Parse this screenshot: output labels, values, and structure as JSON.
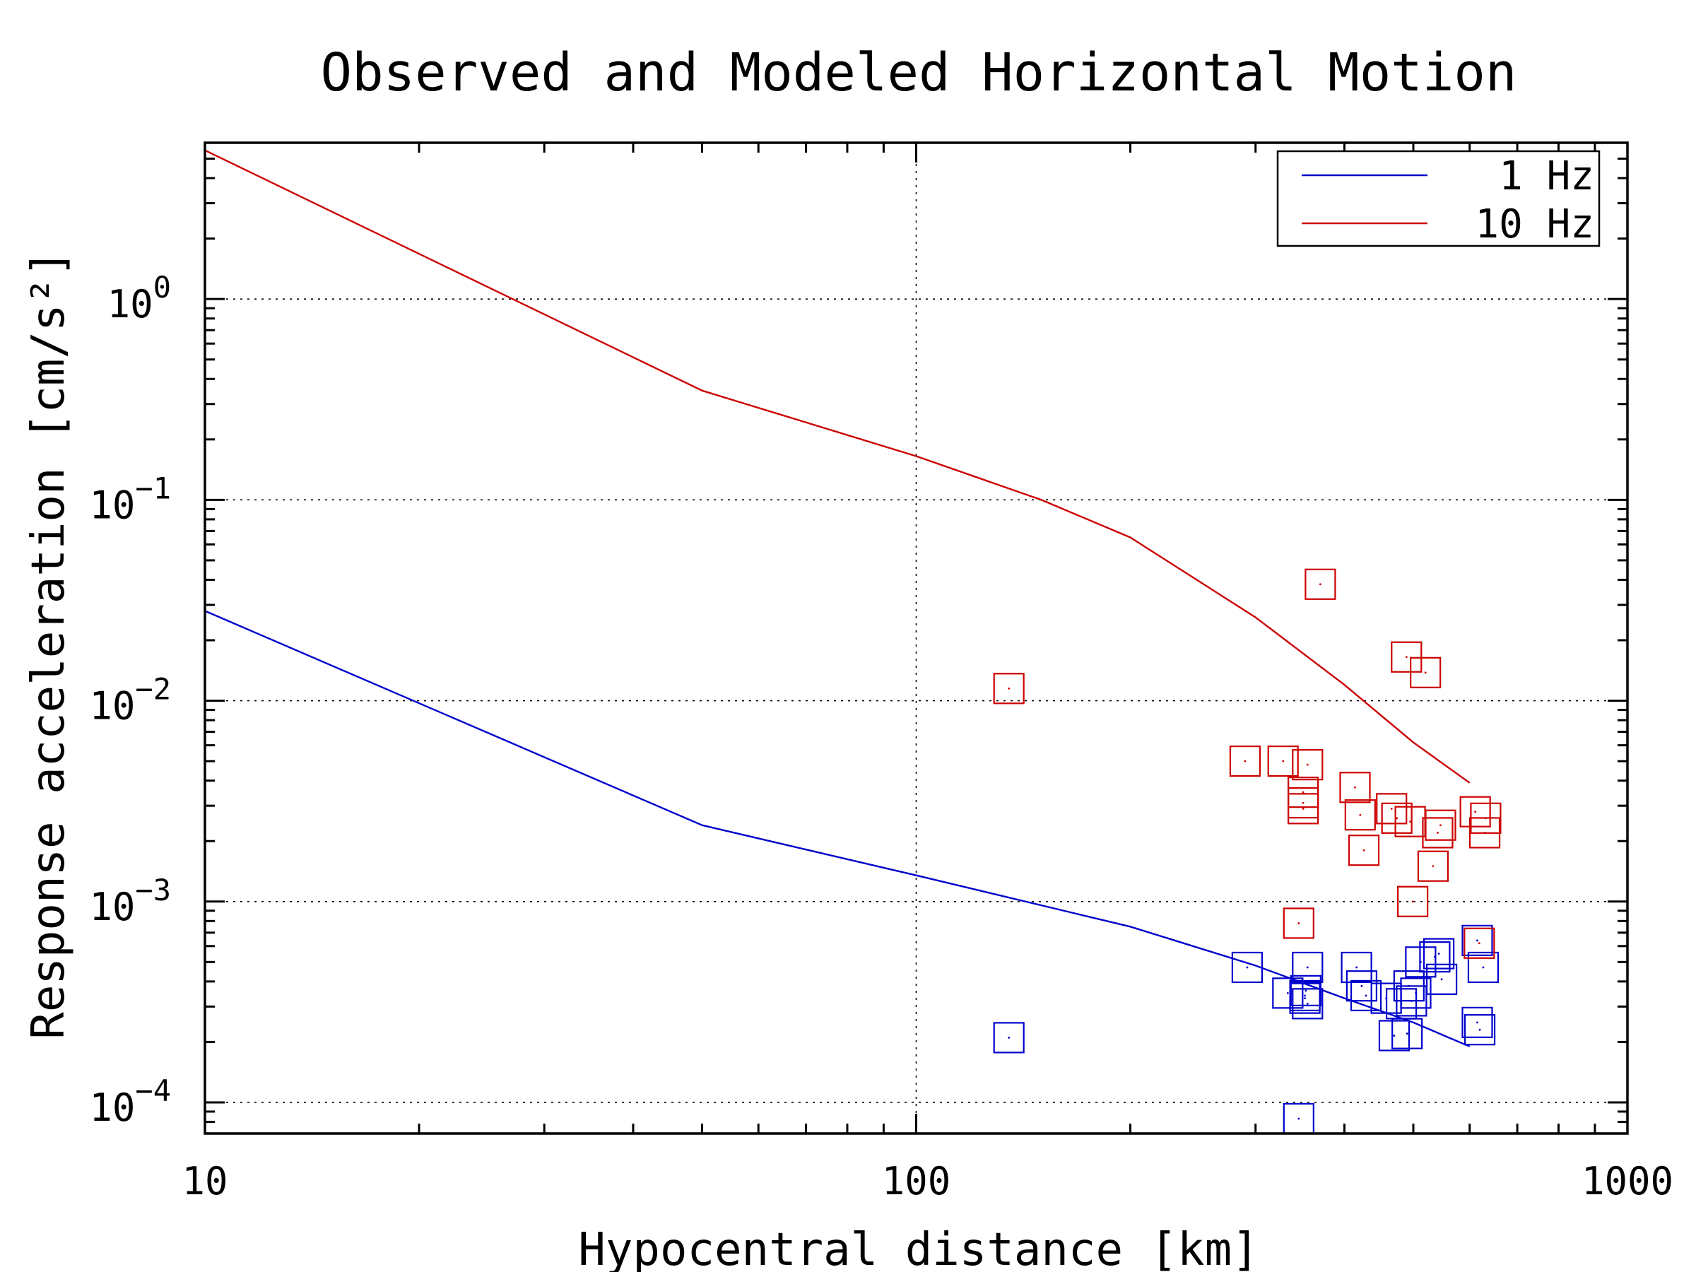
{
  "chart_data": {
    "type": "scatter",
    "title": "Observed and Modeled Horizontal Motion",
    "xlabel": "Hypocentral distance [km]",
    "ylabel": "Response acceleration [cm/s²]",
    "xscale": "log",
    "yscale": "log",
    "xlim": [
      10,
      1000
    ],
    "ylim": [
      7e-05,
      6
    ],
    "x_ticks": [
      {
        "value": 10,
        "label": "10"
      },
      {
        "value": 100,
        "label": "100"
      },
      {
        "value": 1000,
        "label": "1000"
      }
    ],
    "y_ticks": [
      {
        "value": 0.0001,
        "base": "10",
        "exp": "−4"
      },
      {
        "value": 0.001,
        "base": "10",
        "exp": "−3"
      },
      {
        "value": 0.01,
        "base": "10",
        "exp": "−2"
      },
      {
        "value": 0.1,
        "base": "10",
        "exp": "−1"
      },
      {
        "value": 1,
        "base": "10",
        "exp": "0"
      }
    ],
    "grid": true,
    "legend_position": "top-right",
    "series": [
      {
        "name": "1 Hz",
        "color": "#0000cc",
        "model": {
          "x": [
            10,
            50,
            100,
            200,
            300,
            400,
            500,
            600
          ],
          "y": [
            0.028,
            0.0024,
            0.00135,
            0.00075,
            0.00048,
            0.00033,
            0.00025,
            0.00019
          ]
        },
        "observed": {
          "x": [
            135,
            292,
            333,
            345,
            352,
            352,
            353,
            355,
            355,
            416,
            423,
            429,
            458,
            470,
            481,
            490,
            493,
            497,
            504,
            512,
            536,
            543,
            548,
            615,
            615,
            620,
            627
          ],
          "y": [
            0.00021,
            0.00047,
            0.00035,
            8.3e-05,
            0.00033,
            0.00034,
            0.00036,
            0.00031,
            0.00047,
            0.00047,
            0.00038,
            0.00034,
            0.00033,
            0.000215,
            0.00031,
            0.00022,
            0.00038,
            0.00032,
            0.00035,
            0.0005,
            0.00053,
            0.00055,
            0.00041,
            0.00025,
            0.00064,
            0.00023,
            0.00047
          ]
        }
      },
      {
        "name": "10 Hz",
        "color": "#cc0000",
        "model": {
          "x": [
            10,
            50,
            100,
            150,
            200,
            300,
            400,
            500,
            600
          ],
          "y": [
            5.5,
            0.35,
            0.165,
            0.1,
            0.065,
            0.026,
            0.012,
            0.0062,
            0.0039
          ]
        },
        "observed": {
          "x": [
            135,
            290,
            328,
            345,
            350,
            350,
            350,
            355,
            370,
            414,
            421,
            426,
            466,
            474,
            489,
            495,
            499,
            520,
            533,
            541,
            546,
            611,
            619,
            630,
            632
          ],
          "y": [
            0.0115,
            0.005,
            0.005,
            0.00078,
            0.0035,
            0.0031,
            0.0029,
            0.0048,
            0.038,
            0.0037,
            0.0027,
            0.0018,
            0.0029,
            0.0026,
            0.0165,
            0.0025,
            0.001,
            0.0138,
            0.0015,
            0.0022,
            0.0024,
            0.0028,
            0.00062,
            0.0022,
            0.0026
          ]
        }
      }
    ]
  }
}
